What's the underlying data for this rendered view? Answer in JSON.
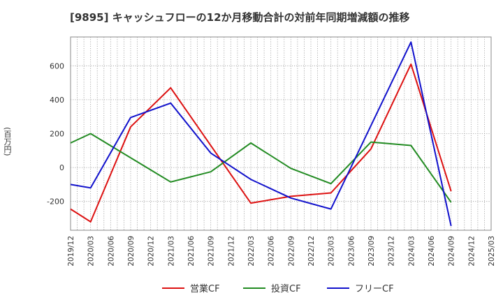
{
  "chart_data": {
    "type": "line",
    "title": "[9895]  キャッシュフローの12か月移動合計の対前年同期増減額の推移",
    "ylabel": "(百万円)",
    "xlabel": "",
    "categories": [
      "2019/12",
      "2020/03",
      "2020/06",
      "2020/09",
      "2020/12",
      "2021/03",
      "2021/06",
      "2021/09",
      "2021/12",
      "2022/03",
      "2022/06",
      "2022/09",
      "2022/12",
      "2023/03",
      "2023/06",
      "2023/09",
      "2023/12",
      "2024/03",
      "2024/06",
      "2024/09",
      "2024/12",
      "2025/03"
    ],
    "ylim": [
      -370,
      770
    ],
    "yticks": [
      -200,
      0,
      200,
      400,
      600
    ],
    "grid": true,
    "legend_position": "bottom",
    "series": [
      {
        "name": "営業CF",
        "color": "#dd1111",
        "values": [
          -245,
          -320,
          null,
          240,
          null,
          470,
          null,
          null,
          null,
          -210,
          null,
          -170,
          null,
          -150,
          null,
          110,
          null,
          610,
          null,
          -140,
          null,
          null
        ]
      },
      {
        "name": "投資CF",
        "color": "#228b22",
        "values": [
          145,
          200,
          null,
          null,
          null,
          -85,
          null,
          -25,
          null,
          145,
          null,
          -5,
          null,
          -95,
          null,
          150,
          null,
          130,
          null,
          -205,
          null,
          null
        ]
      },
      {
        "name": "フリーCF",
        "color": "#1111cc",
        "values": [
          -100,
          -120,
          null,
          295,
          null,
          380,
          null,
          85,
          null,
          -70,
          null,
          -180,
          null,
          -245,
          null,
          null,
          null,
          740,
          null,
          -345,
          null,
          null
        ]
      }
    ]
  }
}
